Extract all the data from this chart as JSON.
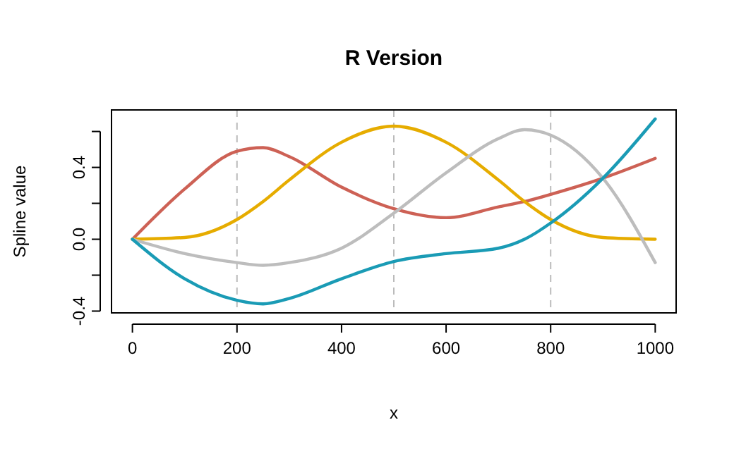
{
  "chart_data": {
    "type": "line",
    "title": "R Version",
    "xlabel": "x",
    "ylabel": "Spline value",
    "xlim": [
      -40,
      1040
    ],
    "ylim": [
      -0.41,
      0.72
    ],
    "xticks": [
      0,
      200,
      400,
      600,
      800,
      1000
    ],
    "yticks": [
      -0.4,
      {
        "value": -0.2,
        "label": null
      },
      "0.0",
      {
        "value": 0.2,
        "label": null
      },
      0.4,
      {
        "value": 0.6,
        "label": null
      }
    ],
    "x": [
      0,
      100,
      200,
      250,
      300,
      400,
      500,
      600,
      700,
      750,
      800,
      900,
      1000
    ],
    "series": [
      {
        "color": "#cd6155",
        "values": [
          0,
          0.28,
          0.49,
          0.51,
          0.46,
          0.29,
          0.17,
          0.12,
          0.18,
          0.21,
          0.25,
          0.34,
          0.45
        ]
      },
      {
        "color": "#e6ac00",
        "values": [
          0,
          0.01,
          0.11,
          0.21,
          0.33,
          0.54,
          0.63,
          0.54,
          0.33,
          0.21,
          0.11,
          0.01,
          0
        ]
      },
      {
        "color": "#bdbdbd",
        "values": [
          0,
          -0.08,
          -0.13,
          -0.145,
          -0.13,
          -0.05,
          0.145,
          0.37,
          0.56,
          0.61,
          0.58,
          0.34,
          -0.13
        ]
      },
      {
        "color": "#1a9bb5",
        "values": [
          0,
          -0.22,
          -0.34,
          -0.36,
          -0.33,
          -0.22,
          -0.124,
          -0.08,
          -0.05,
          0,
          0.09,
          0.34,
          0.67
        ]
      }
    ],
    "ref_lines": [
      {
        "axis": "x",
        "value": 200,
        "color": "#bbbbbb",
        "line_style": "dashed"
      },
      {
        "axis": "x",
        "value": 500,
        "color": "#bbbbbb",
        "line_style": "dashed"
      },
      {
        "axis": "x",
        "value": 800,
        "color": "#bbbbbb",
        "line_style": "dashed"
      }
    ],
    "grid": false,
    "line_style": "solid",
    "marker": "none"
  }
}
